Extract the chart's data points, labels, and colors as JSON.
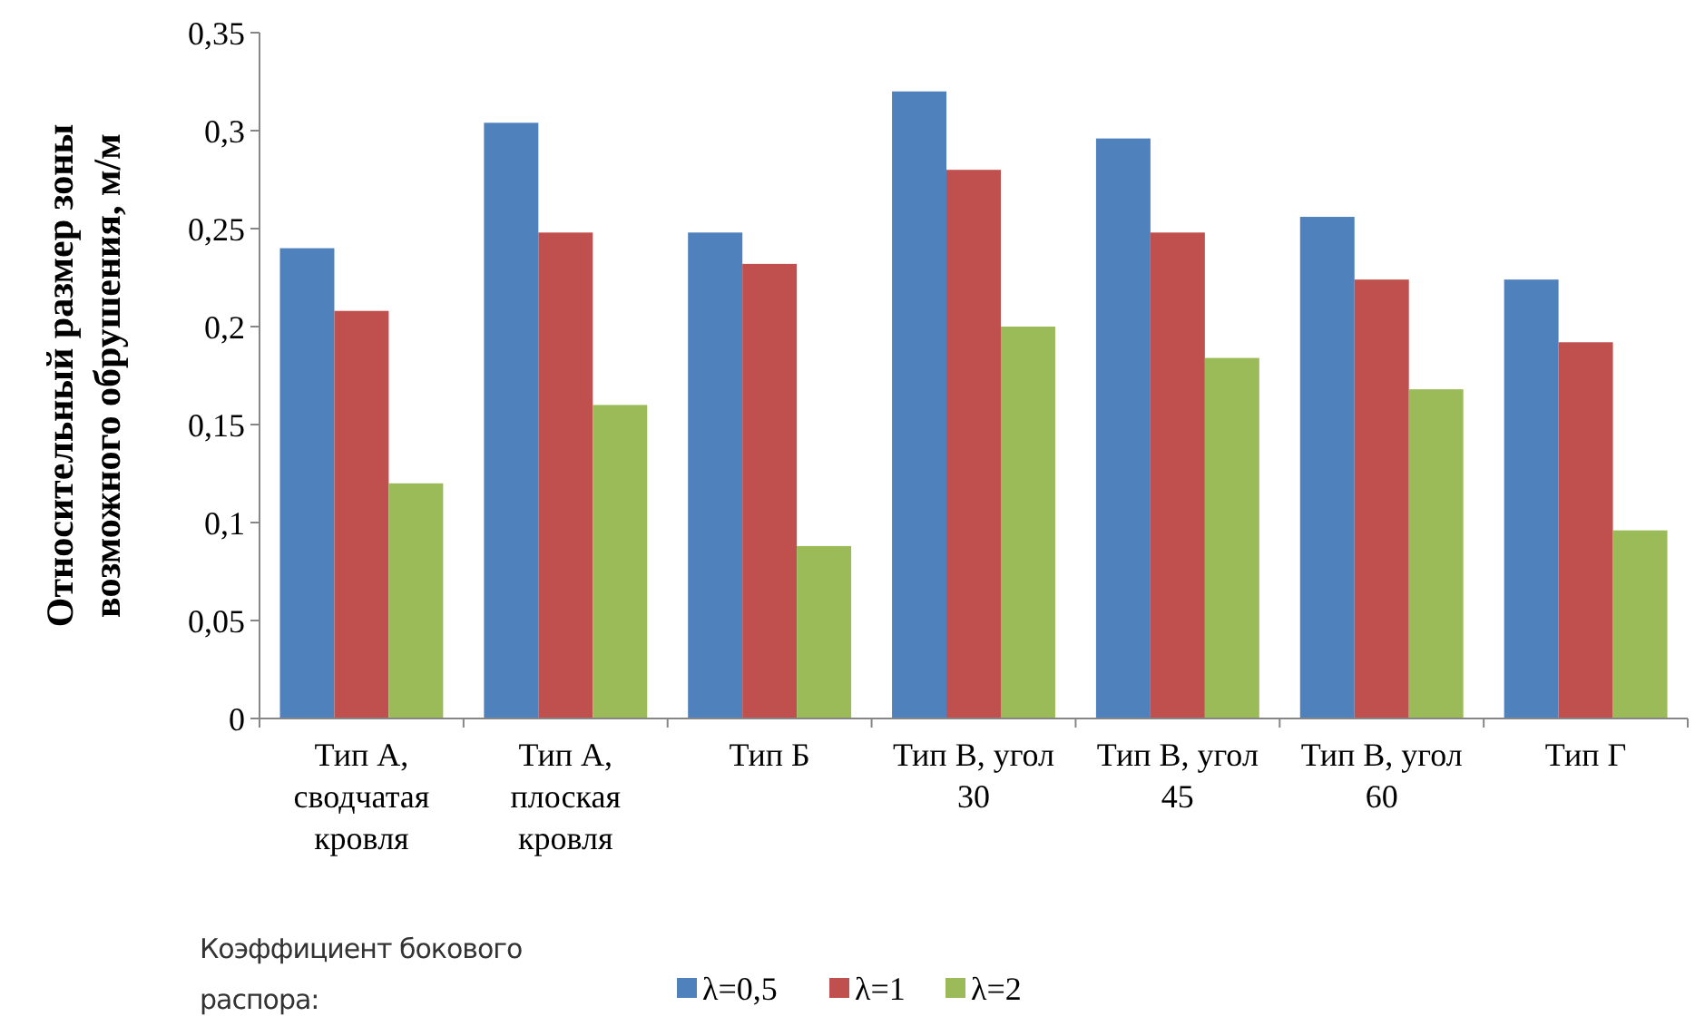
{
  "chart_data": {
    "type": "bar",
    "ylabel": "Относительный размер зоны возможного обрушения, м/м",
    "legend_title": "Коэффициент бокового распора:",
    "legend": "bottom",
    "grid": false,
    "categories": [
      "Тип А, сводчатая кровля",
      "Тип А, плоская кровля",
      "Тип Б",
      "Тип В, угол 30",
      "Тип В, угол 45",
      "Тип В, угол 60",
      "Тип Г"
    ],
    "ylim": [
      0,
      0.35
    ],
    "yticks": [
      0,
      {
        "value": 0.05,
        "label": "0,05"
      },
      {
        "value": 0.1,
        "label": "0,1"
      },
      {
        "value": 0.15,
        "label": "0,15"
      },
      {
        "value": 0.2,
        "label": "0,2"
      },
      {
        "value": 0.25,
        "label": "0,25"
      },
      {
        "value": 0.3,
        "label": "0,3"
      },
      {
        "value": 0.35,
        "label": "0,35"
      }
    ],
    "series": [
      {
        "name": "λ=0,5",
        "color": "#4f81bd",
        "values": [
          0.24,
          0.304,
          0.248,
          0.32,
          0.296,
          0.256,
          0.224
        ]
      },
      {
        "name": "λ=1",
        "color": "#c0504d",
        "values": [
          0.208,
          0.248,
          0.232,
          0.28,
          0.248,
          0.224,
          0.192
        ]
      },
      {
        "name": "λ=2",
        "color": "#9bbb59",
        "values": [
          0.12,
          0.16,
          0.088,
          0.2,
          0.184,
          0.168,
          0.096
        ]
      }
    ]
  }
}
